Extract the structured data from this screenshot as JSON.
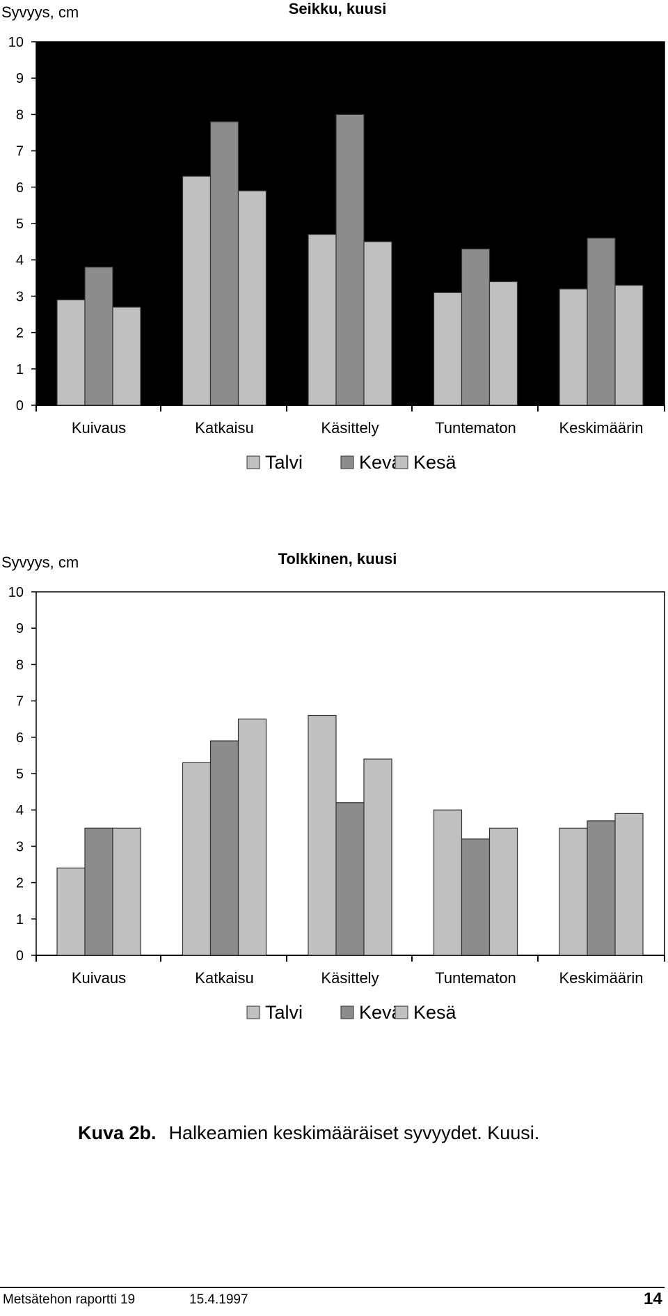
{
  "chart_data": [
    {
      "type": "bar",
      "title": "Seikku, kuusi",
      "ylabel": "Syvyys, cm",
      "xlabel": "",
      "categories": [
        "Kuivaus",
        "Katkaisu",
        "Käsittely",
        "Tuntematon",
        "Keskimäärin"
      ],
      "series": [
        {
          "name": "Talvi",
          "values": [
            2.9,
            6.3,
            4.7,
            3.1,
            3.2
          ],
          "color": "#c0c0c0"
        },
        {
          "name": "Kevät",
          "values": [
            3.8,
            7.8,
            8.0,
            4.3,
            4.6
          ],
          "color": "#8c8c8c"
        },
        {
          "name": "Kesä",
          "values": [
            2.7,
            5.9,
            4.5,
            3.4,
            3.3
          ],
          "color": "#c0c0c0"
        }
      ],
      "ylim": [
        0,
        10
      ],
      "yticks": [
        "0",
        "1",
        "2",
        "3",
        "4",
        "5",
        "6",
        "7",
        "8",
        "9",
        "10"
      ],
      "plot_background": "#000000",
      "grid": false,
      "legend": "bottom"
    },
    {
      "type": "bar",
      "title": "Tolkkinen, kuusi",
      "ylabel": "Syvyys, cm",
      "xlabel": "",
      "categories": [
        "Kuivaus",
        "Katkaisu",
        "Käsittely",
        "Tuntematon",
        "Keskimäärin"
      ],
      "series": [
        {
          "name": "Talvi",
          "values": [
            2.4,
            5.3,
            6.6,
            4.0,
            3.5
          ],
          "color": "#c0c0c0"
        },
        {
          "name": "Kevät",
          "values": [
            3.5,
            5.9,
            4.2,
            3.2,
            3.7
          ],
          "color": "#8c8c8c"
        },
        {
          "name": "Kesä",
          "values": [
            3.5,
            6.5,
            5.4,
            3.5,
            3.9
          ],
          "color": "#c0c0c0"
        }
      ],
      "ylim": [
        0,
        10
      ],
      "yticks": [
        "0",
        "1",
        "2",
        "3",
        "4",
        "5",
        "6",
        "7",
        "8",
        "9",
        "10"
      ],
      "plot_background": "#ffffff",
      "grid": false,
      "legend": "bottom"
    }
  ],
  "caption": {
    "label": "Kuva 2b.",
    "text": "Halkeamien keskimääräiset syvyydet.  Kuusi."
  },
  "footer": {
    "report": "Metsätehon raportti 19",
    "date": "15.4.1997",
    "page_number": "14"
  }
}
